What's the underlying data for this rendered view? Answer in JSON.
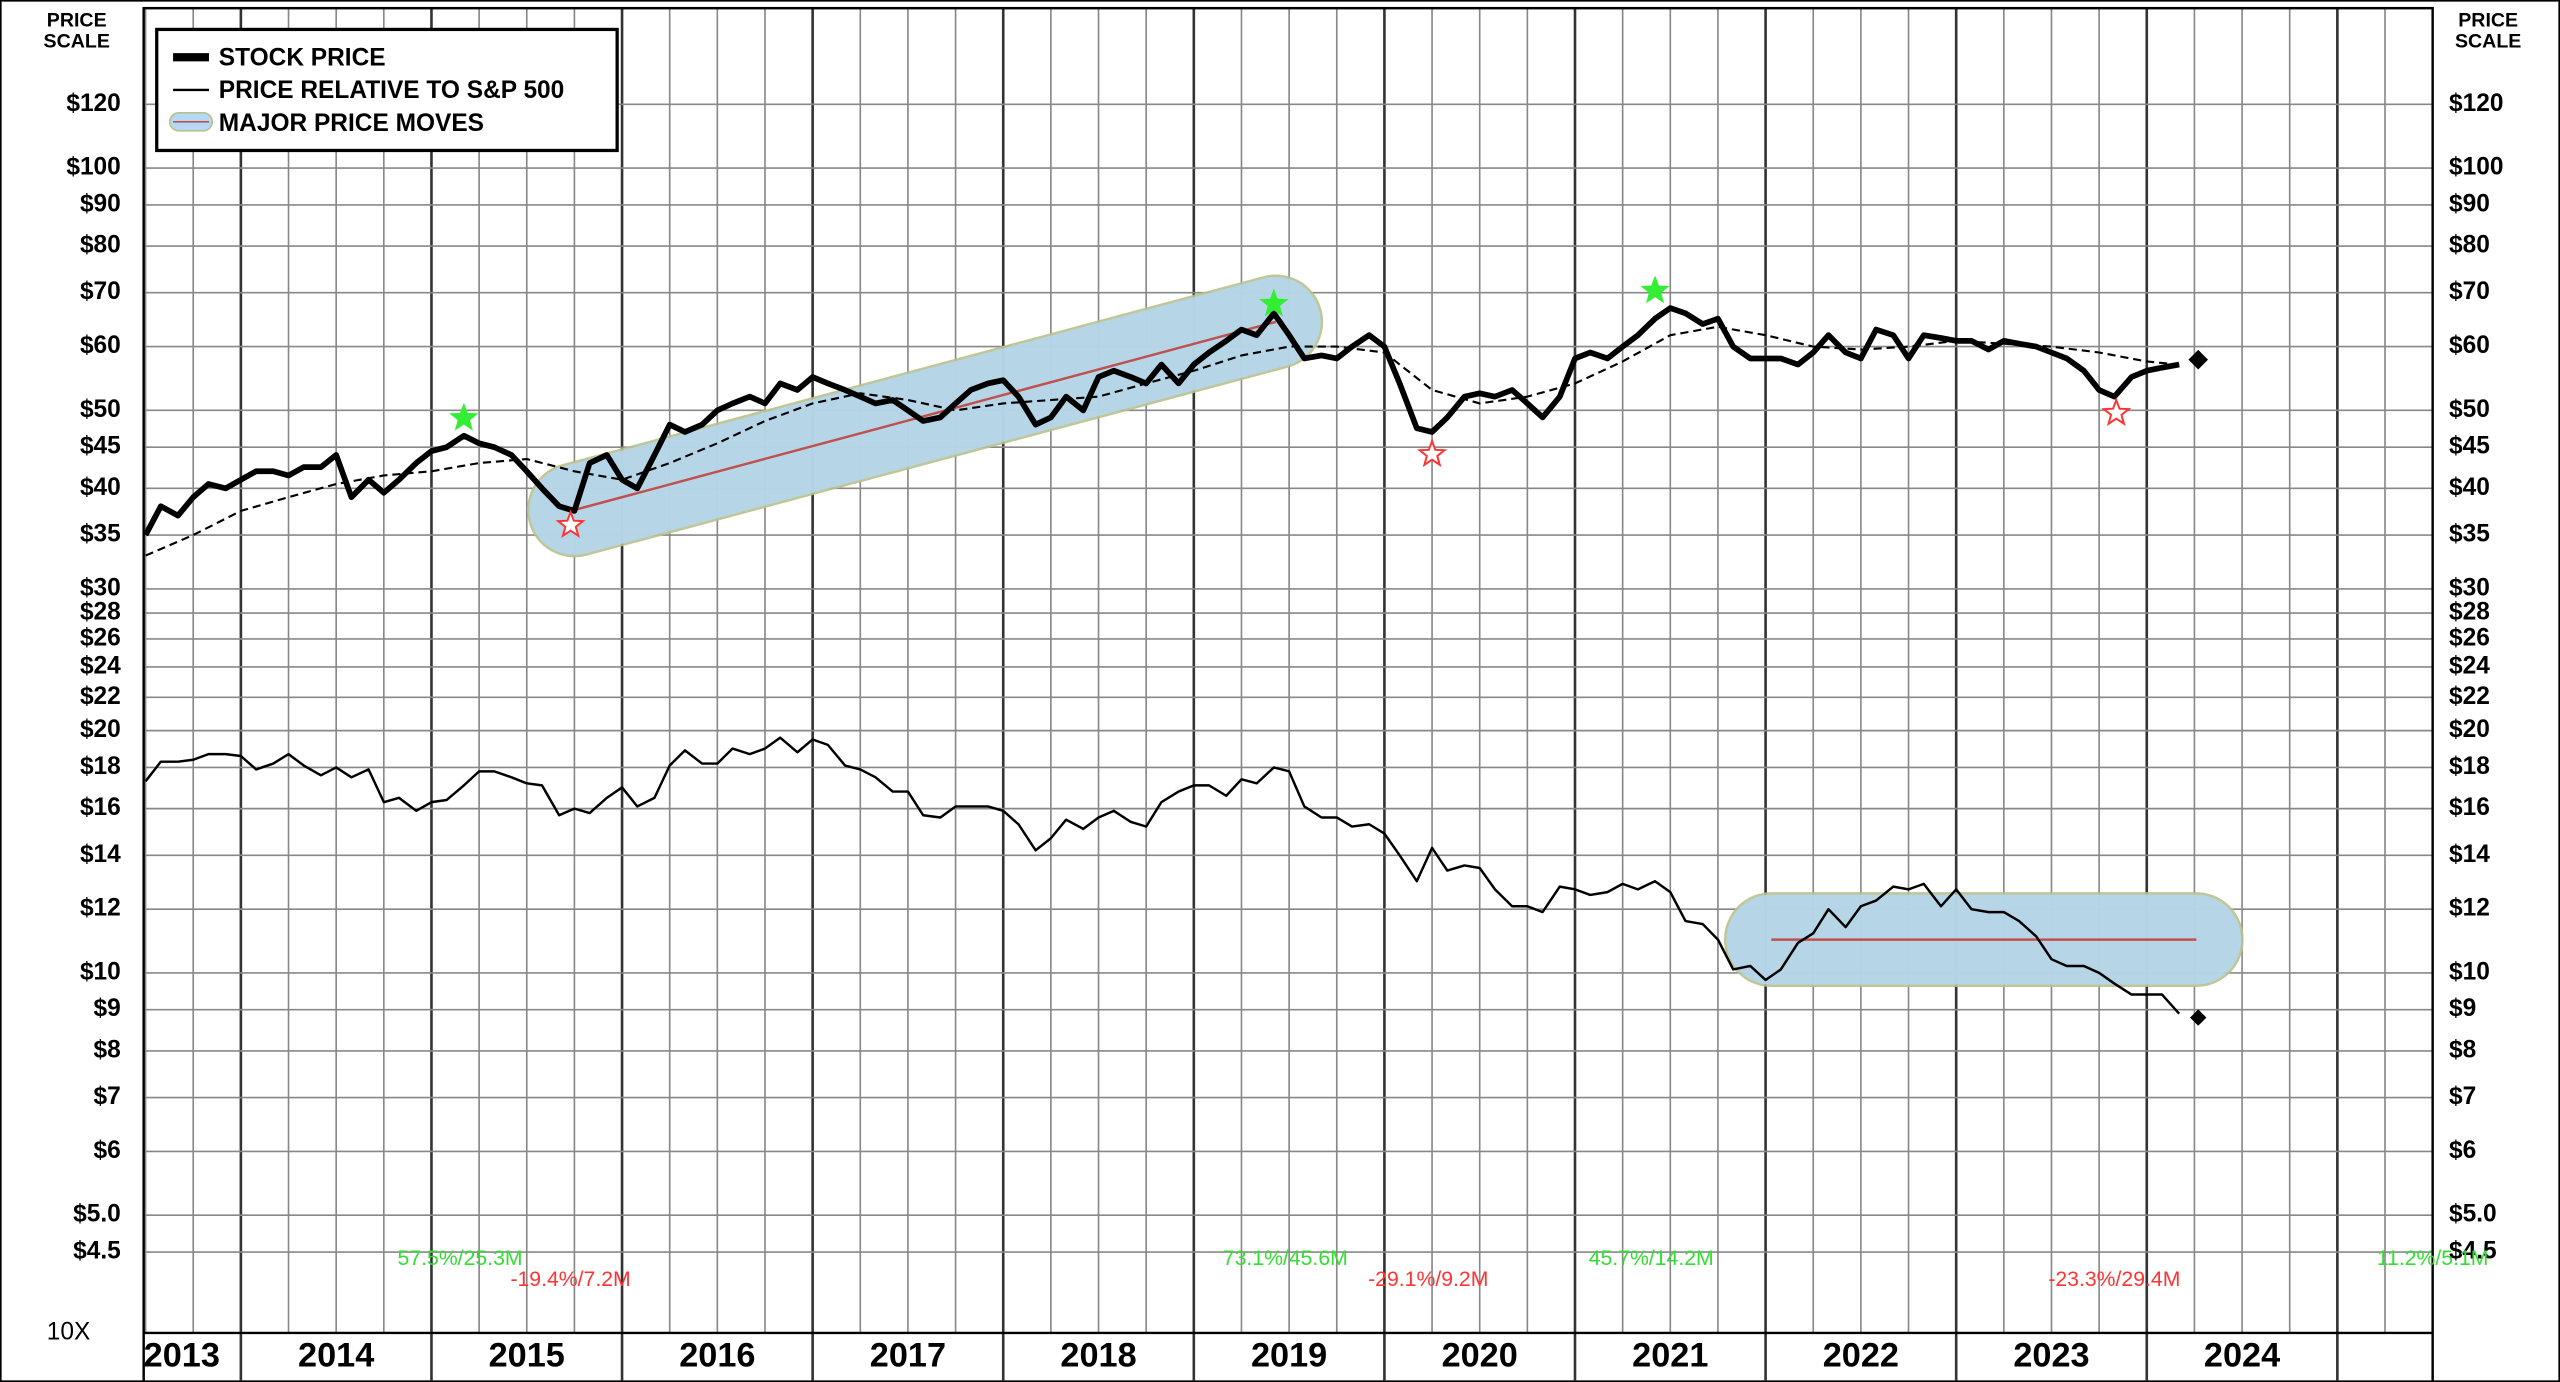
{
  "chart_data": {
    "type": "line",
    "log_scale": true,
    "grid": true,
    "y_axis_label": [
      "PRICE",
      "SCALE"
    ],
    "scale_note": "10X",
    "xlim": [
      2013.49,
      2025.5
    ],
    "ylim": [
      3.57,
      158
    ],
    "xticks": [
      {
        "value": 2013.69,
        "label": "2013"
      },
      {
        "value": 2014.5,
        "label": "2014"
      },
      {
        "value": 2015.5,
        "label": "2015"
      },
      {
        "value": 2016.5,
        "label": "2016"
      },
      {
        "value": 2017.5,
        "label": "2017"
      },
      {
        "value": 2018.5,
        "label": "2018"
      },
      {
        "value": 2019.5,
        "label": "2019"
      },
      {
        "value": 2020.5,
        "label": "2020"
      },
      {
        "value": 2021.5,
        "label": "2021"
      },
      {
        "value": 2022.5,
        "label": "2022"
      },
      {
        "value": 2023.5,
        "label": "2023"
      },
      {
        "value": 2024.5,
        "label": "2024"
      }
    ],
    "xgrid": [
      2013.5,
      2013.75,
      2014,
      2014.25,
      2014.5,
      2014.75,
      2015,
      2015.25,
      2015.5,
      2015.75,
      2016,
      2016.25,
      2016.5,
      2016.75,
      2017,
      2017.25,
      2017.5,
      2017.75,
      2018,
      2018.25,
      2018.5,
      2018.75,
      2019,
      2019.25,
      2019.5,
      2019.75,
      2020,
      2020.25,
      2020.5,
      2020.75,
      2021,
      2021.25,
      2021.5,
      2021.75,
      2022,
      2022.25,
      2022.5,
      2022.75,
      2023,
      2023.25,
      2023.5,
      2023.75,
      2024,
      2024.25,
      2024.5,
      2024.75,
      2025,
      2025.25
    ],
    "yticks": [
      {
        "value": 120,
        "label": "$120"
      },
      {
        "value": 100,
        "label": "$100"
      },
      {
        "value": 90,
        "label": "$90"
      },
      {
        "value": 80,
        "label": "$80"
      },
      {
        "value": 70,
        "label": "$70"
      },
      {
        "value": 60,
        "label": "$60"
      },
      {
        "value": 50,
        "label": "$50"
      },
      {
        "value": 45,
        "label": "$45"
      },
      {
        "value": 40,
        "label": "$40"
      },
      {
        "value": 35,
        "label": "$35"
      },
      {
        "value": 30,
        "label": "$30"
      },
      {
        "value": 28,
        "label": "$28"
      },
      {
        "value": 26,
        "label": "$26"
      },
      {
        "value": 24,
        "label": "$24"
      },
      {
        "value": 22,
        "label": "$22"
      },
      {
        "value": 20,
        "label": "$20"
      },
      {
        "value": 18,
        "label": "$18"
      },
      {
        "value": 16,
        "label": "$16"
      },
      {
        "value": 14,
        "label": "$14"
      },
      {
        "value": 12,
        "label": "$12"
      },
      {
        "value": 10,
        "label": "$10"
      },
      {
        "value": 9,
        "label": "$9"
      },
      {
        "value": 8,
        "label": "$8"
      },
      {
        "value": 7,
        "label": "$7"
      },
      {
        "value": 6,
        "label": "$6"
      },
      {
        "value": 5,
        "label": "$5.0"
      },
      {
        "value": 4.5,
        "label": "$4.5"
      }
    ],
    "x": [
      2013.5,
      2013.58,
      2013.67,
      2013.75,
      2013.83,
      2013.92,
      2014,
      2014.08,
      2014.17,
      2014.25,
      2014.33,
      2014.42,
      2014.5,
      2014.58,
      2014.67,
      2014.75,
      2014.83,
      2014.92,
      2015,
      2015.08,
      2015.17,
      2015.25,
      2015.33,
      2015.42,
      2015.5,
      2015.58,
      2015.67,
      2015.75,
      2015.83,
      2015.92,
      2016,
      2016.08,
      2016.17,
      2016.25,
      2016.33,
      2016.42,
      2016.5,
      2016.58,
      2016.67,
      2016.75,
      2016.83,
      2016.92,
      2017,
      2017.08,
      2017.17,
      2017.25,
      2017.33,
      2017.42,
      2017.5,
      2017.58,
      2017.67,
      2017.75,
      2017.83,
      2017.92,
      2018,
      2018.08,
      2018.17,
      2018.25,
      2018.33,
      2018.42,
      2018.5,
      2018.58,
      2018.67,
      2018.75,
      2018.83,
      2018.92,
      2019,
      2019.08,
      2019.17,
      2019.25,
      2019.33,
      2019.42,
      2019.5,
      2019.58,
      2019.67,
      2019.75,
      2019.83,
      2019.92,
      2020,
      2020.08,
      2020.17,
      2020.25,
      2020.33,
      2020.42,
      2020.5,
      2020.58,
      2020.67,
      2020.75,
      2020.83,
      2020.92,
      2021,
      2021.08,
      2021.17,
      2021.25,
      2021.33,
      2021.42,
      2021.5,
      2021.58,
      2021.67,
      2021.75,
      2021.83,
      2021.92,
      2022,
      2022.08,
      2022.17,
      2022.25,
      2022.33,
      2022.42,
      2022.5,
      2022.58,
      2022.67,
      2022.75,
      2022.83,
      2022.92,
      2023,
      2023.08,
      2023.17,
      2023.25,
      2023.33,
      2023.42,
      2023.5,
      2023.58,
      2023.67,
      2023.75,
      2023.83,
      2023.92,
      2024,
      2024.08,
      2024.17
    ],
    "series": [
      {
        "name": "STOCK PRICE",
        "color": "#000000",
        "line_width": 3.5,
        "values": [
          35,
          38,
          37,
          39,
          40.5,
          40,
          41,
          42,
          42,
          41.5,
          42.5,
          42.5,
          44,
          39,
          41,
          39.5,
          41,
          43,
          44.5,
          45,
          46.5,
          45.5,
          45,
          44,
          42,
          40,
          38,
          37.5,
          43,
          44,
          41,
          40,
          44,
          48,
          47,
          48,
          50,
          51,
          52,
          51,
          54,
          53,
          55,
          54,
          53,
          52,
          51,
          51.5,
          50,
          48.5,
          49,
          51,
          53,
          54,
          54.5,
          52,
          48,
          49,
          52,
          50,
          55,
          56,
          55,
          54,
          57,
          54,
          57,
          59,
          61,
          63,
          62,
          66,
          62,
          58,
          58.5,
          58,
          60,
          62,
          60,
          54,
          47.5,
          47,
          49,
          52,
          52.5,
          52,
          53,
          51,
          49,
          52,
          58,
          59,
          58,
          60,
          62,
          65,
          67,
          66,
          64,
          65,
          60,
          58,
          58,
          58,
          57,
          59,
          62,
          59,
          58,
          63,
          62,
          58,
          62,
          61.5,
          61,
          61,
          59.5,
          61,
          60.5,
          60,
          59,
          58,
          56,
          53,
          52,
          55,
          56,
          56.5,
          57
        ]
      },
      {
        "name": "PRICE RELATIVE TO S&P 500",
        "color": "#000000",
        "line_width": 1.5,
        "values": [
          17.3,
          18.3,
          18.3,
          18.4,
          18.7,
          18.7,
          18.6,
          17.9,
          18.2,
          18.7,
          18.1,
          17.6,
          18.0,
          17.5,
          17.9,
          16.3,
          16.5,
          15.9,
          16.3,
          16.4,
          17.1,
          17.8,
          17.8,
          17.5,
          17.2,
          17.1,
          15.7,
          16.0,
          15.8,
          16.5,
          17.0,
          16.1,
          16.5,
          18.1,
          18.9,
          18.2,
          18.2,
          19.0,
          18.7,
          19.0,
          19.6,
          18.8,
          19.5,
          19.2,
          18.1,
          17.9,
          17.5,
          16.8,
          16.8,
          15.7,
          15.6,
          16.1,
          16.1,
          16.1,
          15.9,
          15.3,
          14.2,
          14.7,
          15.5,
          15.1,
          15.6,
          15.9,
          15.4,
          15.2,
          16.3,
          16.8,
          17.1,
          17.1,
          16.6,
          17.4,
          17.2,
          18.0,
          17.8,
          16.1,
          15.6,
          15.6,
          15.2,
          15.3,
          14.9,
          14.0,
          13.0,
          14.3,
          13.4,
          13.6,
          13.5,
          12.7,
          12.1,
          12.1,
          11.9,
          12.8,
          12.7,
          12.5,
          12.6,
          12.9,
          12.7,
          13.0,
          12.6,
          11.6,
          11.5,
          11.0,
          10.1,
          10.2,
          9.8,
          10.1,
          10.9,
          11.2,
          12.0,
          11.4,
          12.1,
          12.3,
          12.8,
          12.7,
          12.9,
          12.1,
          12.7,
          12.0,
          11.9,
          11.9,
          11.6,
          11.1,
          10.4,
          10.2,
          10.2,
          10.0,
          9.7,
          9.4,
          9.4,
          9.4,
          8.9
        ]
      },
      {
        "color": "#000000",
        "line_width": 1.3,
        "dashed": true,
        "x": [
          2013.5,
          2013.75,
          2014,
          2014.25,
          2014.5,
          2014.75,
          2015,
          2015.25,
          2015.5,
          2015.75,
          2016,
          2016.25,
          2016.5,
          2016.75,
          2017,
          2017.25,
          2017.5,
          2017.75,
          2018,
          2018.25,
          2018.5,
          2018.75,
          2019,
          2019.25,
          2019.5,
          2019.75,
          2020,
          2020.25,
          2020.5,
          2020.75,
          2021,
          2021.25,
          2021.5,
          2021.75,
          2022,
          2022.25,
          2022.5,
          2022.75,
          2023,
          2023.25,
          2023.5,
          2023.75,
          2024,
          2024.17
        ],
        "values": [
          33,
          35,
          37.5,
          39,
          40.5,
          41.5,
          42,
          43,
          43.5,
          42,
          41,
          43,
          45.5,
          48.5,
          51,
          52.5,
          51.5,
          50,
          51,
          51.5,
          52,
          54,
          56,
          58.5,
          60,
          60,
          59,
          53,
          51,
          52,
          54,
          57.5,
          62,
          63.5,
          62,
          60,
          59.5,
          60,
          61,
          60.5,
          60,
          59,
          57.5,
          57
        ]
      }
    ],
    "bands": {
      "name": "MAJOR PRICE MOVES",
      "color": "#b5d8f5",
      "edge": "#b9c28c",
      "line_color": "#c0504d",
      "items": [
        {
          "x": [
            2015.75,
            2019.43
          ],
          "values": [
            37.6,
            64.4
          ]
        },
        {
          "x": [
            2022.03,
            2024.26
          ],
          "values": [
            11.0,
            11.0
          ]
        }
      ]
    },
    "peaks": {
      "color": "#33ee33",
      "points": [
        {
          "x": 2015.17,
          "value": 48.9
        },
        {
          "x": 2019.42,
          "value": 67.8
        },
        {
          "x": 2021.42,
          "value": 70.4
        }
      ]
    },
    "troughs": {
      "color": "#ff3333",
      "points": [
        {
          "x": 2015.73,
          "value": 36.0
        },
        {
          "x": 2020.25,
          "value": 44.1
        },
        {
          "x": 2023.84,
          "value": 49.6
        }
      ]
    },
    "last_points": [
      {
        "x": 2024.27,
        "value": 57.8
      },
      {
        "x": 2024.27,
        "value": 8.8
      }
    ],
    "moves": [
      {
        "x": 2015.15,
        "text": "57.5%/25.3M",
        "color": "#33dd33",
        "kind": "gain"
      },
      {
        "x": 2015.73,
        "text": "-19.4%/7.2M",
        "color": "#ff3333",
        "kind": "loss"
      },
      {
        "x": 2019.48,
        "text": "73.1%/45.6M",
        "color": "#33dd33",
        "kind": "gain"
      },
      {
        "x": 2020.23,
        "text": "-29.1%/9.2M",
        "color": "#ff3333",
        "kind": "loss"
      },
      {
        "x": 2021.4,
        "text": "45.7%/14.2M",
        "color": "#33dd33",
        "kind": "gain"
      },
      {
        "x": 2023.83,
        "text": "-23.3%/29.4M",
        "color": "#ff3333",
        "kind": "loss"
      },
      {
        "x": 2025.5,
        "text": "11.2%/5.1M",
        "color": "#33dd33",
        "kind": "gain"
      }
    ]
  }
}
